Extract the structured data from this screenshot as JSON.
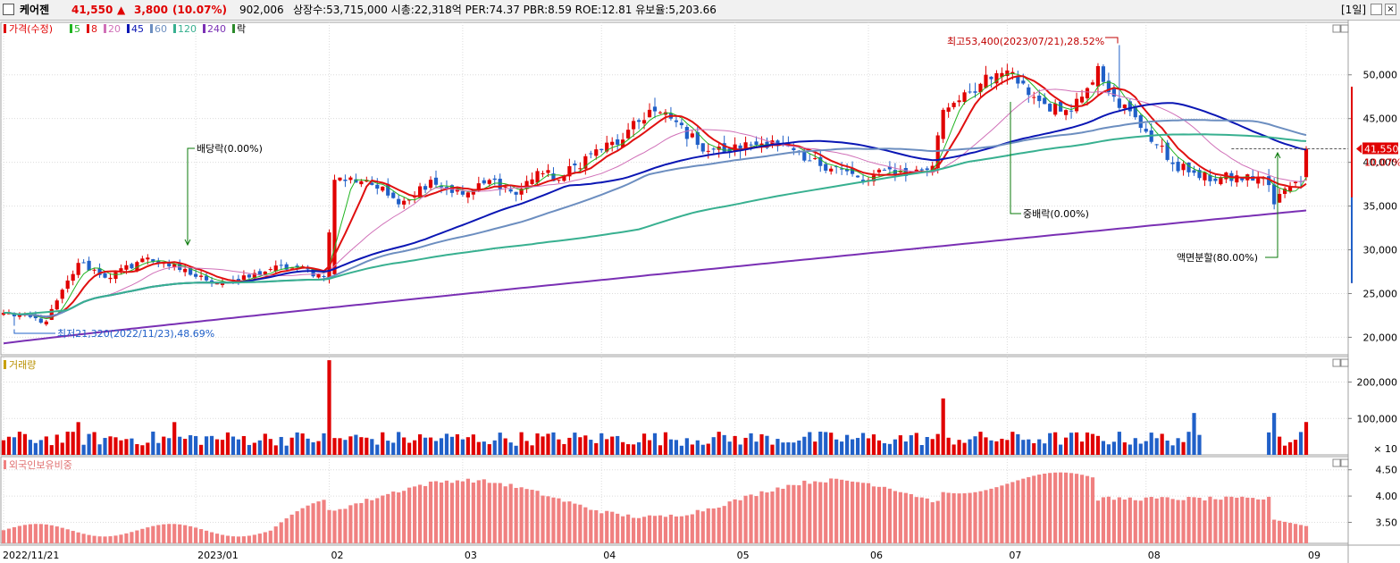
{
  "header": {
    "name": "케어젠",
    "price": "41,550",
    "change_arrow": "▲",
    "change": "3,800",
    "change_pct": "(10.07%)",
    "volume": "902,006",
    "stats": "상장수:53,715,000 시총:22,318억 PER:74.37 PBR:8.59 ROE:12.81 유보율:5,203.66",
    "period": "[1일]"
  },
  "legend_price": {
    "price_label": "가격(수정)",
    "ma": [
      {
        "label": "5",
        "color": "#21b421"
      },
      {
        "label": "8",
        "color": "#e01010"
      },
      {
        "label": "20",
        "color": "#d070b8"
      },
      {
        "label": "45",
        "color": "#0a16b4"
      },
      {
        "label": "60",
        "color": "#6c8ec0"
      },
      {
        "label": "120",
        "color": "#38b090"
      },
      {
        "label": "240",
        "color": "#7a30b4"
      }
    ],
    "event_label": "락"
  },
  "legend_volume": {
    "label": "거래량"
  },
  "legend_foreign": {
    "label": "외국인보유비중"
  },
  "annotations": {
    "high": "최고53,400(2023/07/21),28.52%",
    "low": "최저21,320(2022/11/23),48.69%",
    "dividend": "배당락(0.00%)",
    "stock_dividend": "중배락(0.00%)",
    "split": "액면분할(80.00%)"
  },
  "current_tag": {
    "price": "41,550",
    "pct": "10.07%"
  },
  "colors": {
    "up": "#e00000",
    "down": "#2060c8",
    "foreign_bar": "#f08080",
    "grid": "#dcdcdc"
  },
  "chart_data": {
    "type": "candlestick",
    "panels": [
      {
        "name": "price",
        "ylim": [
          18000,
          56000
        ],
        "yticks": [
          20000,
          25000,
          30000,
          35000,
          40000,
          45000,
          50000
        ],
        "ytick_labels": [
          "20,000",
          "25,000",
          "30,000",
          "35,000",
          "40,000",
          "45,000",
          "50,000"
        ]
      },
      {
        "name": "volume",
        "ylim": [
          0,
          270000
        ],
        "yticks": [
          100000,
          200000
        ],
        "ytick_labels": [
          "100,000",
          "200,000"
        ],
        "unit_label": "× 10"
      },
      {
        "name": "foreign_ratio",
        "ylim": [
          3.1,
          4.75
        ],
        "yticks": [
          3.5,
          4.0,
          4.5
        ],
        "ytick_labels": [
          "3.50",
          "4.00",
          "4.50"
        ]
      }
    ],
    "x_labels": [
      "2022/11/21",
      "2023/01",
      "02",
      "03",
      "04",
      "05",
      "06",
      "07",
      "08",
      "09"
    ],
    "x_label_index": [
      0,
      36,
      61,
      86,
      112,
      137,
      162,
      188,
      214,
      244
    ],
    "anchors": [
      [
        0,
        22800
      ],
      [
        8,
        21800
      ],
      [
        14,
        28500
      ],
      [
        20,
        26800
      ],
      [
        26,
        29000
      ],
      [
        30,
        28500
      ],
      [
        33,
        27700
      ],
      [
        38,
        26500
      ],
      [
        44,
        26400
      ],
      [
        50,
        27800
      ],
      [
        55,
        28000
      ],
      [
        60,
        26900
      ],
      [
        62,
        38000
      ],
      [
        68,
        38000
      ],
      [
        72,
        36200
      ],
      [
        75,
        35600
      ],
      [
        80,
        38000
      ],
      [
        86,
        36300
      ],
      [
        92,
        38000
      ],
      [
        96,
        36300
      ],
      [
        100,
        39000
      ],
      [
        104,
        38000
      ],
      [
        110,
        41000
      ],
      [
        116,
        42600
      ],
      [
        121,
        46000
      ],
      [
        126,
        44600
      ],
      [
        130,
        42000
      ],
      [
        135,
        41200
      ],
      [
        140,
        42000
      ],
      [
        144,
        42500
      ],
      [
        150,
        40200
      ],
      [
        156,
        39500
      ],
      [
        161,
        37700
      ],
      [
        166,
        39200
      ],
      [
        170,
        38700
      ],
      [
        174,
        39600
      ],
      [
        176,
        46000
      ],
      [
        180,
        48000
      ],
      [
        185,
        49500
      ],
      [
        188,
        50500
      ],
      [
        190,
        49000
      ],
      [
        194,
        47000
      ],
      [
        198,
        45800
      ],
      [
        202,
        47500
      ],
      [
        205,
        51000
      ],
      [
        208,
        47500
      ],
      [
        214,
        43500
      ],
      [
        219,
        39800
      ],
      [
        223,
        38800
      ],
      [
        224,
        38200
      ],
      [
        236,
        38200
      ],
      [
        237,
        37400
      ],
      [
        238,
        35200
      ],
      [
        240,
        37000
      ],
      [
        243,
        37750
      ],
      [
        244,
        41550
      ]
    ],
    "series_note": "Daily OHLC from 2022/11/21 to 2023/09 (245 sessions); close path follows the anchor points shown above, with moving averages 5/8/20/45/60/120/240, daily volume and foreign ownership ratio (%) panels."
  }
}
